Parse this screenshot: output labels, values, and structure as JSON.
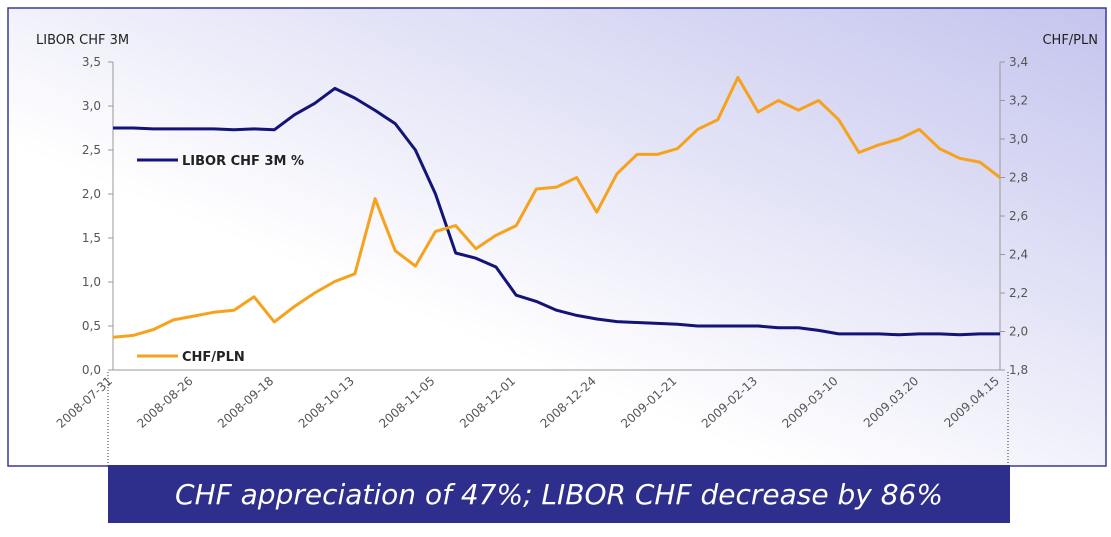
{
  "chart_data": {
    "type": "line",
    "y_title": "LIBOR CHF 3M",
    "y2_title": "CHF/PLN",
    "annotation": "CHF appreciation of 47%; LIBOR CHF decrease by 86%",
    "categories": [
      "2008-07-31",
      null,
      null,
      null,
      "2008-08-26",
      null,
      null,
      null,
      "2008-09-18",
      null,
      null,
      null,
      "2008-10-13",
      null,
      null,
      null,
      "2008-11-05",
      null,
      null,
      null,
      "2008-12-01",
      null,
      null,
      null,
      "2008-12-24",
      null,
      null,
      null,
      "2009-01-21",
      null,
      null,
      null,
      "2009-02-13",
      null,
      null,
      null,
      "2009-03-10",
      null,
      null,
      null,
      "2009.03.20",
      null,
      null,
      null,
      "2009.04.15"
    ],
    "series": [
      {
        "name": "LIBOR CHF 3M %",
        "color": "#141478",
        "axis": "y",
        "values": [
          2.75,
          2.75,
          2.74,
          2.74,
          2.74,
          2.74,
          2.73,
          2.74,
          2.73,
          2.9,
          3.03,
          3.2,
          3.09,
          2.95,
          2.8,
          2.5,
          2.0,
          1.33,
          1.27,
          1.17,
          0.85,
          0.78,
          0.68,
          0.62,
          0.58,
          0.55,
          0.54,
          0.53,
          0.52,
          0.5,
          0.5,
          0.5,
          0.5,
          0.48,
          0.48,
          0.45,
          0.41,
          0.41,
          0.41,
          0.4,
          0.41,
          0.41,
          0.4,
          0.41,
          0.41
        ]
      },
      {
        "name": "CHF/PLN",
        "color": "#f7a21c",
        "axis": "y2",
        "values": [
          1.97,
          1.98,
          2.01,
          2.06,
          2.08,
          2.1,
          2.11,
          2.18,
          2.05,
          2.13,
          2.2,
          2.26,
          2.3,
          2.69,
          2.42,
          2.34,
          2.52,
          2.55,
          2.43,
          2.5,
          2.55,
          2.74,
          2.75,
          2.8,
          2.62,
          2.82,
          2.92,
          2.92,
          2.95,
          3.05,
          3.1,
          3.32,
          3.14,
          3.2,
          3.15,
          3.2,
          3.1,
          2.93,
          2.97,
          3.0,
          3.05,
          2.95,
          2.9,
          2.88,
          2.8
        ]
      }
    ],
    "ylim": [
      0,
      3.5
    ],
    "yticks": [
      {
        "value": 0,
        "label": "0,0"
      },
      {
        "value": 0.5,
        "label": "0,5"
      },
      {
        "value": 1,
        "label": "1,0"
      },
      {
        "value": 1.5,
        "label": "1,5"
      },
      {
        "value": 2,
        "label": "2,0"
      },
      {
        "value": 2.5,
        "label": "2,5"
      },
      {
        "value": 3,
        "label": "3,0"
      },
      {
        "value": 3.5,
        "label": "3,5"
      }
    ],
    "y2lim": [
      1.8,
      3.4
    ],
    "y2ticks": [
      {
        "value": 1.8,
        "label": "1,8"
      },
      {
        "value": 2,
        "label": "2,0"
      },
      {
        "value": 2.2,
        "label": "2,2"
      },
      {
        "value": 2.4,
        "label": "2,4"
      },
      {
        "value": 2.6,
        "label": "2,6"
      },
      {
        "value": 2.8,
        "label": "2,8"
      },
      {
        "value": 3,
        "label": "3,0"
      },
      {
        "value": 3.2,
        "label": "3,2"
      },
      {
        "value": 3.4,
        "label": "3,4"
      }
    ]
  }
}
